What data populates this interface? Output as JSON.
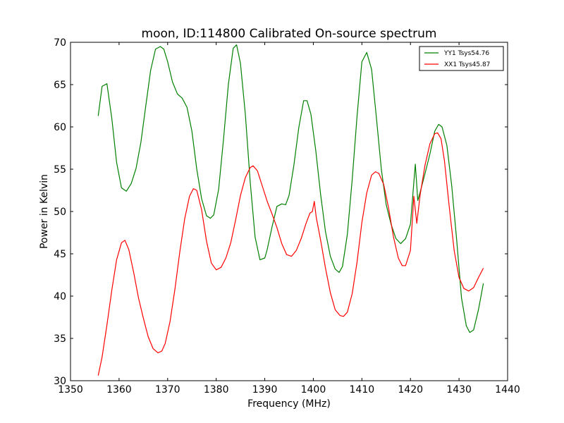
{
  "chart_data": {
    "type": "line",
    "title": "moon, ID:114800 Calibrated On-source spectrum",
    "xlabel": "Frequency (MHz)",
    "ylabel": "Power in Kelvin",
    "xlim": [
      1350,
      1440
    ],
    "ylim": [
      30,
      70
    ],
    "xticks": [
      1350,
      1360,
      1370,
      1380,
      1390,
      1400,
      1410,
      1420,
      1430,
      1440
    ],
    "yticks": [
      30,
      35,
      40,
      45,
      50,
      55,
      60,
      65,
      70
    ],
    "grid": false,
    "legend_position": "top-right",
    "series": [
      {
        "name": "YY1 Tsys54.76",
        "color": "#008000",
        "x": [
          1355.7,
          1356.5,
          1357.5,
          1358.5,
          1359.5,
          1360.5,
          1361.5,
          1362.5,
          1363.5,
          1364.5,
          1365.5,
          1366.5,
          1367.5,
          1368.5,
          1369.2,
          1370,
          1371,
          1372,
          1373,
          1374,
          1375,
          1376,
          1377,
          1378,
          1378.8,
          1379.5,
          1380.5,
          1381.5,
          1382.5,
          1383.5,
          1384.2,
          1385,
          1386,
          1387,
          1388,
          1389,
          1390,
          1390.5,
          1391.5,
          1392.5,
          1393.5,
          1394.3,
          1395,
          1396,
          1397,
          1398,
          1398.7,
          1399.5,
          1400.5,
          1401.5,
          1402.5,
          1403.5,
          1404.5,
          1405.3,
          1406,
          1407,
          1408,
          1409,
          1410,
          1411,
          1412,
          1413,
          1414,
          1415,
          1416,
          1417,
          1418,
          1419,
          1420,
          1421,
          1421.5,
          1422,
          1423,
          1424,
          1425,
          1425.8,
          1426.5,
          1427.5,
          1428.5,
          1429.5,
          1430.5,
          1431.5,
          1432.2,
          1433,
          1434,
          1435
        ],
        "y": [
          61.3,
          64.8,
          65.1,
          61,
          55.8,
          52.8,
          52.4,
          53.3,
          55.1,
          58.2,
          62.5,
          66.7,
          69.2,
          69.5,
          69.2,
          67.7,
          65.3,
          63.9,
          63.4,
          62.3,
          59.5,
          55,
          51.5,
          49.5,
          49.2,
          49.6,
          52.6,
          58.5,
          65,
          69.3,
          69.7,
          67.5,
          61.5,
          53.5,
          47,
          44.3,
          44.5,
          45.5,
          48.2,
          50.6,
          50.9,
          50.8,
          51.9,
          55.5,
          59.9,
          63.1,
          63.1,
          61.5,
          57.2,
          52,
          47.6,
          44.7,
          43.2,
          42.8,
          43.5,
          47.3,
          53.8,
          61.2,
          67.7,
          68.8,
          66.8,
          61,
          55,
          50.8,
          48.5,
          46.8,
          46.2,
          46.8,
          48.5,
          55.6,
          51.3,
          52.3,
          54.5,
          56.8,
          59.5,
          60.3,
          60,
          57.8,
          53,
          46.7,
          39.8,
          36.5,
          35.7,
          36,
          38.4,
          41.5
        ]
      },
      {
        "name": "XX1 Tsys45.87",
        "color": "#ff0000",
        "x": [
          1355.7,
          1356.5,
          1357.5,
          1358.5,
          1359.5,
          1360.5,
          1361.2,
          1362,
          1363,
          1364,
          1365,
          1366,
          1367,
          1368,
          1368.8,
          1369.5,
          1370.5,
          1371.5,
          1372.5,
          1373.5,
          1374.5,
          1375.3,
          1376,
          1377,
          1378,
          1379,
          1380,
          1381,
          1382,
          1383,
          1384,
          1385,
          1386,
          1387,
          1387.6,
          1388.5,
          1389.5,
          1390.5,
          1391.5,
          1392.5,
          1393.5,
          1394.5,
          1395.5,
          1396.5,
          1397.5,
          1398.5,
          1399.3,
          1399.8,
          1400.2,
          1400.6,
          1401.5,
          1402.5,
          1403.5,
          1404.5,
          1405.5,
          1406.2,
          1407,
          1408,
          1409,
          1410,
          1411,
          1412,
          1412.8,
          1413.5,
          1414.5,
          1415.5,
          1416.5,
          1417.5,
          1418.3,
          1419,
          1420,
          1420.7,
          1421.3,
          1422,
          1423,
          1424,
          1425,
          1425.6,
          1426.3,
          1427,
          1428,
          1429,
          1430,
          1431,
          1432,
          1433,
          1434,
          1435
        ],
        "y": [
          30.6,
          32.8,
          36.6,
          40.7,
          44.3,
          46.3,
          46.6,
          45.5,
          42.8,
          39.8,
          37.4,
          35.2,
          33.8,
          33.3,
          33.5,
          34.4,
          37,
          40.8,
          45.2,
          49.1,
          51.8,
          52.7,
          52.5,
          50.2,
          46.5,
          43.9,
          43.1,
          43.4,
          44.5,
          46.3,
          49,
          51.9,
          54,
          55.2,
          55.4,
          54.8,
          53,
          51.2,
          49.7,
          48.1,
          46.2,
          44.9,
          44.7,
          45.4,
          46.8,
          48.6,
          49.8,
          50,
          51.2,
          49.3,
          46.6,
          43.3,
          40.4,
          38.4,
          37.7,
          37.6,
          38.1,
          40.3,
          44,
          48.7,
          52.2,
          54.3,
          54.7,
          54.5,
          53.2,
          50.4,
          47,
          44.5,
          43.6,
          43.6,
          45.4,
          51.8,
          48.6,
          52,
          55.5,
          58,
          59.2,
          59.3,
          58.6,
          56,
          50.5,
          45.4,
          42.2,
          40.9,
          40.6,
          41,
          42.2,
          43.3
        ]
      }
    ]
  }
}
